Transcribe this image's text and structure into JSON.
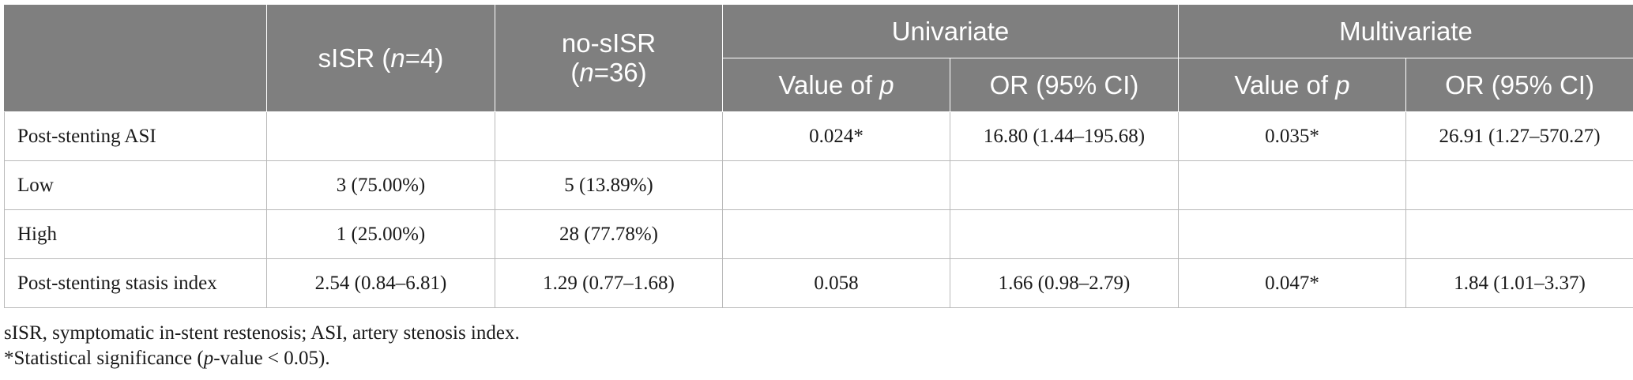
{
  "header": {
    "col_sisr_pre": "sISR (",
    "col_sisr_n": "n",
    "col_sisr_post": "=4)",
    "col_nosisr_line1": "no-sISR",
    "col_nosisr_pre": "(",
    "col_nosisr_n": "n",
    "col_nosisr_post": "=36)",
    "univariate": "Univariate",
    "multivariate": "Multivariate",
    "value_of_pre": "Value of ",
    "p": "p",
    "or_ci": "OR (95% CI)"
  },
  "rows": [
    {
      "label": "Post-stenting ASI",
      "sisr": "",
      "nosisr": "",
      "uni_p": "0.024*",
      "uni_or": "16.80 (1.44–195.68)",
      "multi_p": "0.035*",
      "multi_or": "26.91 (1.27–570.27)"
    },
    {
      "label": "Low",
      "sisr": "3 (75.00%)",
      "nosisr": "5 (13.89%)",
      "uni_p": "",
      "uni_or": "",
      "multi_p": "",
      "multi_or": ""
    },
    {
      "label": "High",
      "sisr": "1 (25.00%)",
      "nosisr": "28 (77.78%)",
      "uni_p": "",
      "uni_or": "",
      "multi_p": "",
      "multi_or": ""
    },
    {
      "label": "Post-stenting stasis index",
      "sisr": "2.54 (0.84–6.81)",
      "nosisr": "1.29 (0.77–1.68)",
      "uni_p": "0.058",
      "uni_or": "1.66 (0.98–2.79)",
      "multi_p": "0.047*",
      "multi_or": "1.84 (1.01–3.37)"
    }
  ],
  "footnotes": {
    "abbreviations": "sISR, symptomatic in-stent restenosis; ASI, artery stenosis index.",
    "significance_pre": "*Statistical significance (",
    "significance_p": "p",
    "significance_post": "-value < 0.05)."
  }
}
